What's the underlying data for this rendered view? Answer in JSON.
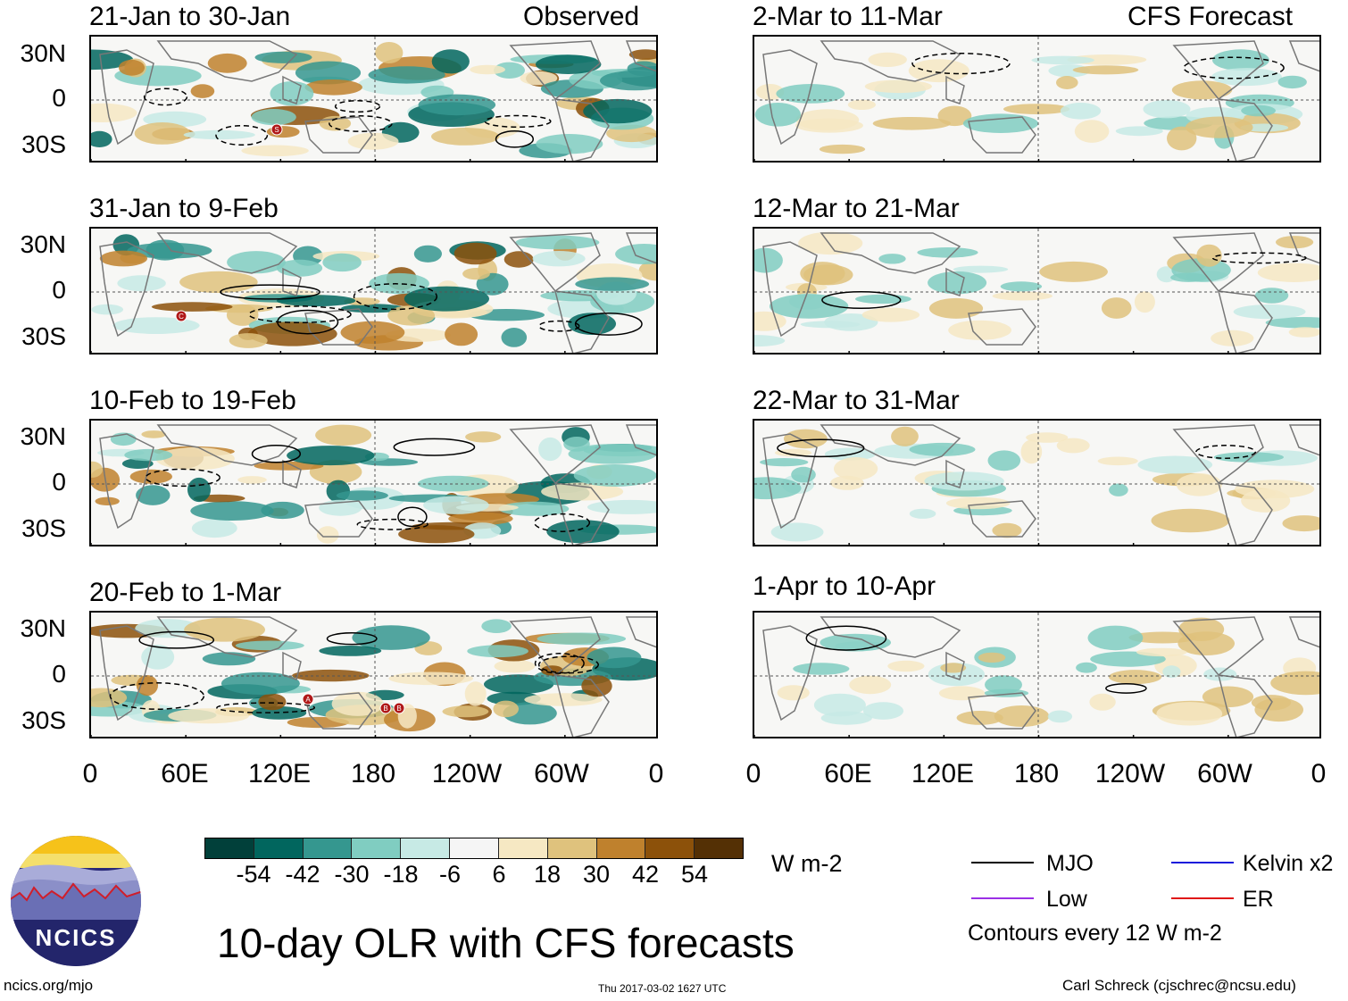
{
  "left_header_label": "Observed",
  "right_header_label": "CFS Forecast",
  "left_panels": [
    {
      "title": "21-Jan to 30-Jan"
    },
    {
      "title": "31-Jan to 9-Feb"
    },
    {
      "title": "10-Feb to 19-Feb"
    },
    {
      "title": "20-Feb to 1-Mar"
    }
  ],
  "right_panels": [
    {
      "title": "2-Mar to 11-Mar"
    },
    {
      "title": "12-Mar to 21-Mar"
    },
    {
      "title": "22-Mar to 31-Mar"
    },
    {
      "title": "1-Apr to 10-Apr"
    }
  ],
  "y_ticks": [
    "30N",
    "0",
    "30S"
  ],
  "x_ticks": [
    "0",
    "60E",
    "120E",
    "180",
    "120W",
    "60W",
    "0"
  ],
  "colorbar": {
    "labels": [
      "-54",
      "-42",
      "-30",
      "-18",
      "-6",
      "6",
      "18",
      "30",
      "42",
      "54"
    ],
    "colors": [
      "#01403a",
      "#01665e",
      "#35978f",
      "#80cdc1",
      "#c7eae5",
      "#f5f5f5",
      "#f6e8c3",
      "#dfc27d",
      "#bf812d",
      "#8c510a",
      "#543005"
    ],
    "units": "W m-2"
  },
  "title": "10-day OLR with CFS forecasts",
  "legend": {
    "items": [
      {
        "label": "MJO",
        "color": "#000000"
      },
      {
        "label": "Kelvin x2",
        "color": "#1a1adb"
      },
      {
        "label": "Low",
        "color": "#9b30e6"
      },
      {
        "label": "ER",
        "color": "#e01818"
      }
    ],
    "note": "Contours every 12 W m-2"
  },
  "logo": {
    "text": "NCICS"
  },
  "footer": {
    "url": "ncics.org/mjo",
    "timestamp": "Thu 2017-03-02 1627 UTC",
    "credit": "Carl Schreck (cjschrec@ncsu.edu)"
  },
  "storm_markers": {
    "panel1": "S",
    "panel2": "C",
    "panel4": [
      "A",
      "B",
      "B"
    ]
  }
}
